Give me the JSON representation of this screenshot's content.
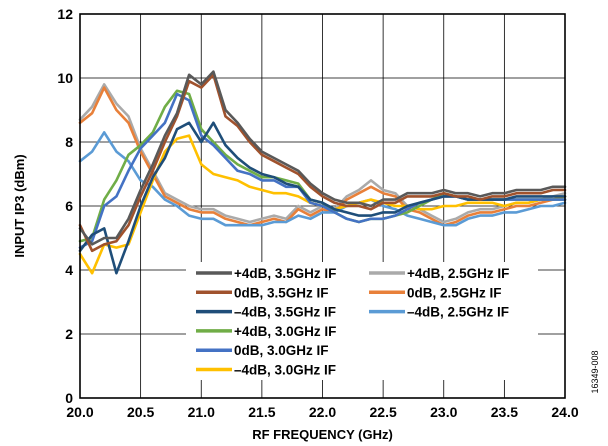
{
  "figure_id": "16349-008",
  "chart_data": {
    "type": "line",
    "xlabel": "RF FREQUENCY (GHz)",
    "ylabel": "INPUT IP3 (dBm)",
    "xlim": [
      20.0,
      24.0
    ],
    "ylim": [
      0,
      12
    ],
    "xticks": [
      20.0,
      20.5,
      21.0,
      21.5,
      22.0,
      22.5,
      23.0,
      23.5,
      24.0
    ],
    "xtick_labels": [
      "20.0",
      "20.5",
      "21.0",
      "21.5",
      "22.0",
      "22.5",
      "23.0",
      "23.5",
      "24.0"
    ],
    "yticks": [
      0,
      2,
      4,
      6,
      8,
      10,
      12
    ],
    "ytick_labels": [
      "0",
      "2",
      "4",
      "6",
      "8",
      "10",
      "12"
    ],
    "grid": true,
    "legend_position": "lower-right",
    "series": [
      {
        "name": "+4dB, 2.5GHz IF",
        "color": "#aaaaaa",
        "x": [
          20.0,
          20.1,
          20.2,
          20.3,
          20.4,
          20.5,
          20.6,
          20.7,
          20.8,
          20.9,
          21.0,
          21.1,
          21.2,
          21.3,
          21.4,
          21.5,
          21.6,
          21.7,
          21.8,
          21.9,
          22.0,
          22.1,
          22.2,
          22.3,
          22.4,
          22.5,
          22.6,
          22.7,
          22.8,
          22.9,
          23.0,
          23.1,
          23.2,
          23.3,
          23.4,
          23.5,
          23.6,
          23.7,
          23.8,
          23.9,
          24.0
        ],
        "y": [
          8.7,
          9.1,
          9.8,
          9.2,
          8.8,
          7.8,
          7.1,
          6.4,
          6.2,
          6.0,
          5.9,
          5.9,
          5.7,
          5.6,
          5.5,
          5.6,
          5.7,
          5.6,
          6.0,
          5.8,
          6.0,
          5.9,
          6.3,
          6.5,
          6.8,
          6.5,
          6.4,
          6.0,
          5.9,
          5.7,
          5.5,
          5.6,
          5.8,
          5.9,
          5.9,
          6.0,
          6.1,
          6.1,
          6.2,
          6.3,
          6.4
        ]
      },
      {
        "name": "0dB, 2.5GHz IF",
        "color": "#e8803a",
        "x": [
          20.0,
          20.1,
          20.2,
          20.3,
          20.4,
          20.5,
          20.6,
          20.7,
          20.8,
          20.9,
          21.0,
          21.1,
          21.2,
          21.3,
          21.4,
          21.5,
          21.6,
          21.7,
          21.8,
          21.9,
          22.0,
          22.1,
          22.2,
          22.3,
          22.4,
          22.5,
          22.6,
          22.7,
          22.8,
          22.9,
          23.0,
          23.1,
          23.2,
          23.3,
          23.4,
          23.5,
          23.6,
          23.7,
          23.8,
          23.9,
          24.0
        ],
        "y": [
          8.6,
          8.9,
          9.7,
          9.0,
          8.6,
          7.7,
          7.0,
          6.3,
          6.1,
          5.9,
          5.8,
          5.8,
          5.6,
          5.5,
          5.4,
          5.5,
          5.6,
          5.5,
          5.9,
          5.7,
          5.9,
          5.8,
          6.2,
          6.4,
          6.6,
          6.4,
          6.3,
          5.9,
          5.8,
          5.6,
          5.4,
          5.5,
          5.7,
          5.8,
          5.8,
          5.9,
          6.0,
          6.0,
          6.1,
          6.2,
          6.3
        ]
      },
      {
        "name": "–4dB, 2.5GHz IF",
        "color": "#5b9bd5",
        "x": [
          20.0,
          20.1,
          20.2,
          20.3,
          20.4,
          20.5,
          20.6,
          20.7,
          20.8,
          20.9,
          21.0,
          21.1,
          21.2,
          21.3,
          21.4,
          21.5,
          21.6,
          21.7,
          21.8,
          21.9,
          22.0,
          22.1,
          22.2,
          22.3,
          22.4,
          22.5,
          22.6,
          22.7,
          22.8,
          22.9,
          23.0,
          23.1,
          23.2,
          23.3,
          23.4,
          23.5,
          23.6,
          23.7,
          23.8,
          23.9,
          24.0
        ],
        "y": [
          7.4,
          7.7,
          8.3,
          7.7,
          7.4,
          6.8,
          6.6,
          6.2,
          6.0,
          5.7,
          5.6,
          5.6,
          5.4,
          5.4,
          5.4,
          5.4,
          5.5,
          5.5,
          5.7,
          5.6,
          5.8,
          5.8,
          6.0,
          6.1,
          6.2,
          6.0,
          5.9,
          5.7,
          5.6,
          5.5,
          5.4,
          5.4,
          5.6,
          5.7,
          5.7,
          5.8,
          5.8,
          5.9,
          6.0,
          6.0,
          6.1
        ]
      },
      {
        "name": "–4dB, 3.0GHz IF",
        "color": "#ffc000",
        "x": [
          20.0,
          20.1,
          20.2,
          20.3,
          20.4,
          20.5,
          20.6,
          20.7,
          20.8,
          20.9,
          21.0,
          21.1,
          21.2,
          21.3,
          21.4,
          21.5,
          21.6,
          21.7,
          21.8,
          21.9,
          22.0,
          22.1,
          22.2,
          22.3,
          22.4,
          22.5,
          22.6,
          22.7,
          22.8,
          22.9,
          23.0,
          23.1,
          23.2,
          23.3,
          23.4,
          23.5,
          23.6,
          23.7,
          23.8,
          23.9,
          24.0
        ],
        "y": [
          4.5,
          3.9,
          4.8,
          4.7,
          4.8,
          5.8,
          6.8,
          7.7,
          8.1,
          8.2,
          7.3,
          7.0,
          6.9,
          6.8,
          6.6,
          6.5,
          6.4,
          6.4,
          6.3,
          6.1,
          6.0,
          5.9,
          6.0,
          6.1,
          6.2,
          6.1,
          6.0,
          6.0,
          5.9,
          5.9,
          6.0,
          6.0,
          6.1,
          6.1,
          6.1,
          6.0,
          6.1,
          6.1,
          6.2,
          6.2,
          6.3
        ]
      },
      {
        "name": "+4dB, 3.0GHz IF",
        "color": "#70ad47",
        "x": [
          20.0,
          20.1,
          20.2,
          20.3,
          20.4,
          20.5,
          20.6,
          20.7,
          20.8,
          20.9,
          21.0,
          21.1,
          21.2,
          21.3,
          21.4,
          21.5,
          21.6,
          21.7,
          21.8,
          21.9,
          22.0,
          22.1,
          22.2,
          22.3,
          22.4,
          22.5,
          22.6,
          22.7,
          22.8,
          22.9,
          23.0,
          23.1,
          23.2,
          23.3,
          23.4,
          23.5,
          23.6,
          23.7,
          23.8,
          23.9,
          24.0
        ],
        "y": [
          4.9,
          5.0,
          6.2,
          6.8,
          7.6,
          7.9,
          8.3,
          9.1,
          9.6,
          9.5,
          8.4,
          8.0,
          7.6,
          7.3,
          7.1,
          6.9,
          6.9,
          6.8,
          6.7,
          6.2,
          6.1,
          5.8,
          5.6,
          5.5,
          5.6,
          5.6,
          5.7,
          5.8,
          6.0,
          6.2,
          6.4,
          6.3,
          6.2,
          6.2,
          6.2,
          6.2,
          6.2,
          6.2,
          6.2,
          6.2,
          6.2
        ]
      },
      {
        "name": "0dB, 3.0GHz IF",
        "color": "#4472c4",
        "x": [
          20.0,
          20.1,
          20.2,
          20.3,
          20.4,
          20.5,
          20.6,
          20.7,
          20.8,
          20.9,
          21.0,
          21.1,
          21.2,
          21.3,
          21.4,
          21.5,
          21.6,
          21.7,
          21.8,
          21.9,
          22.0,
          22.1,
          22.2,
          22.3,
          22.4,
          22.5,
          22.6,
          22.7,
          22.8,
          22.9,
          23.0,
          23.1,
          23.2,
          23.3,
          23.4,
          23.5,
          23.6,
          23.7,
          23.8,
          23.9,
          24.0
        ],
        "y": [
          4.7,
          4.9,
          6.0,
          6.3,
          7.1,
          7.8,
          8.2,
          8.6,
          9.5,
          9.3,
          8.2,
          7.9,
          7.5,
          7.1,
          7.0,
          6.8,
          6.8,
          6.6,
          6.6,
          6.1,
          6.0,
          5.8,
          5.6,
          5.5,
          5.6,
          5.6,
          5.7,
          5.9,
          6.1,
          6.2,
          6.3,
          6.3,
          6.2,
          6.2,
          6.2,
          6.2,
          6.2,
          6.2,
          6.2,
          6.2,
          6.2
        ]
      },
      {
        "name": "–4dB, 3.5GHz IF",
        "color": "#1f4e79",
        "x": [
          20.0,
          20.1,
          20.2,
          20.3,
          20.4,
          20.5,
          20.6,
          20.7,
          20.8,
          20.9,
          21.0,
          21.1,
          21.2,
          21.3,
          21.4,
          21.5,
          21.6,
          21.7,
          21.8,
          21.9,
          22.0,
          22.1,
          22.2,
          22.3,
          22.4,
          22.5,
          22.6,
          22.7,
          22.8,
          22.9,
          23.0,
          23.1,
          23.2,
          23.3,
          23.4,
          23.5,
          23.6,
          23.7,
          23.8,
          23.9,
          24.0
        ],
        "y": [
          4.6,
          5.1,
          5.3,
          3.9,
          4.9,
          6.0,
          6.9,
          7.5,
          8.4,
          8.6,
          8.0,
          8.6,
          7.9,
          7.5,
          7.2,
          7.0,
          6.9,
          6.7,
          6.6,
          6.2,
          6.1,
          5.9,
          5.8,
          5.7,
          5.7,
          5.8,
          5.8,
          6.0,
          6.1,
          6.2,
          6.3,
          6.3,
          6.2,
          6.2,
          6.2,
          6.2,
          6.3,
          6.3,
          6.3,
          6.3,
          6.3
        ]
      },
      {
        "name": "0dB, 3.5GHz IF",
        "color": "#a0522d",
        "x": [
          20.0,
          20.1,
          20.2,
          20.3,
          20.4,
          20.5,
          20.6,
          20.7,
          20.8,
          20.9,
          21.0,
          21.1,
          21.2,
          21.3,
          21.4,
          21.5,
          21.6,
          21.7,
          21.8,
          21.9,
          22.0,
          22.1,
          22.2,
          22.3,
          22.4,
          22.5,
          22.6,
          22.7,
          22.8,
          22.9,
          23.0,
          23.1,
          23.2,
          23.3,
          23.4,
          23.5,
          23.6,
          23.7,
          23.8,
          23.9,
          24.0
        ],
        "y": [
          5.4,
          4.6,
          4.8,
          4.9,
          5.4,
          6.3,
          7.1,
          8.0,
          8.8,
          9.9,
          9.7,
          10.1,
          8.8,
          8.5,
          8.0,
          7.6,
          7.4,
          7.2,
          7.0,
          6.6,
          6.3,
          6.1,
          6.0,
          6.0,
          5.9,
          6.1,
          6.1,
          6.3,
          6.3,
          6.3,
          6.4,
          6.3,
          6.3,
          6.2,
          6.3,
          6.3,
          6.4,
          6.4,
          6.4,
          6.5,
          6.5
        ]
      },
      {
        "name": "+4dB, 3.5GHz IF",
        "color": "#595959",
        "x": [
          20.0,
          20.1,
          20.2,
          20.3,
          20.4,
          20.5,
          20.6,
          20.7,
          20.8,
          20.9,
          21.0,
          21.1,
          21.2,
          21.3,
          21.4,
          21.5,
          21.6,
          21.7,
          21.8,
          21.9,
          22.0,
          22.1,
          22.2,
          22.3,
          22.4,
          22.5,
          22.6,
          22.7,
          22.8,
          22.9,
          23.0,
          23.1,
          23.2,
          23.3,
          23.4,
          23.5,
          23.6,
          23.7,
          23.8,
          23.9,
          24.0
        ],
        "y": [
          5.3,
          4.8,
          5.0,
          5.0,
          5.6,
          6.5,
          7.3,
          8.2,
          8.9,
          10.1,
          9.8,
          10.2,
          9.0,
          8.6,
          8.1,
          7.7,
          7.5,
          7.3,
          7.1,
          6.7,
          6.4,
          6.2,
          6.1,
          6.1,
          6.0,
          6.2,
          6.2,
          6.4,
          6.4,
          6.4,
          6.5,
          6.4,
          6.4,
          6.3,
          6.4,
          6.4,
          6.5,
          6.5,
          6.5,
          6.6,
          6.6
        ]
      }
    ],
    "legend_columns": [
      [
        "+4dB, 3.5GHz IF",
        "0dB, 3.5GHz IF",
        "–4dB, 3.5GHz IF",
        "+4dB, 3.0GHz IF",
        "0dB, 3.0GHz IF",
        "–4dB, 3.0GHz IF"
      ],
      [
        "+4dB, 2.5GHz IF",
        "0dB, 2.5GHz IF",
        "–4dB, 2.5GHz IF"
      ]
    ]
  }
}
